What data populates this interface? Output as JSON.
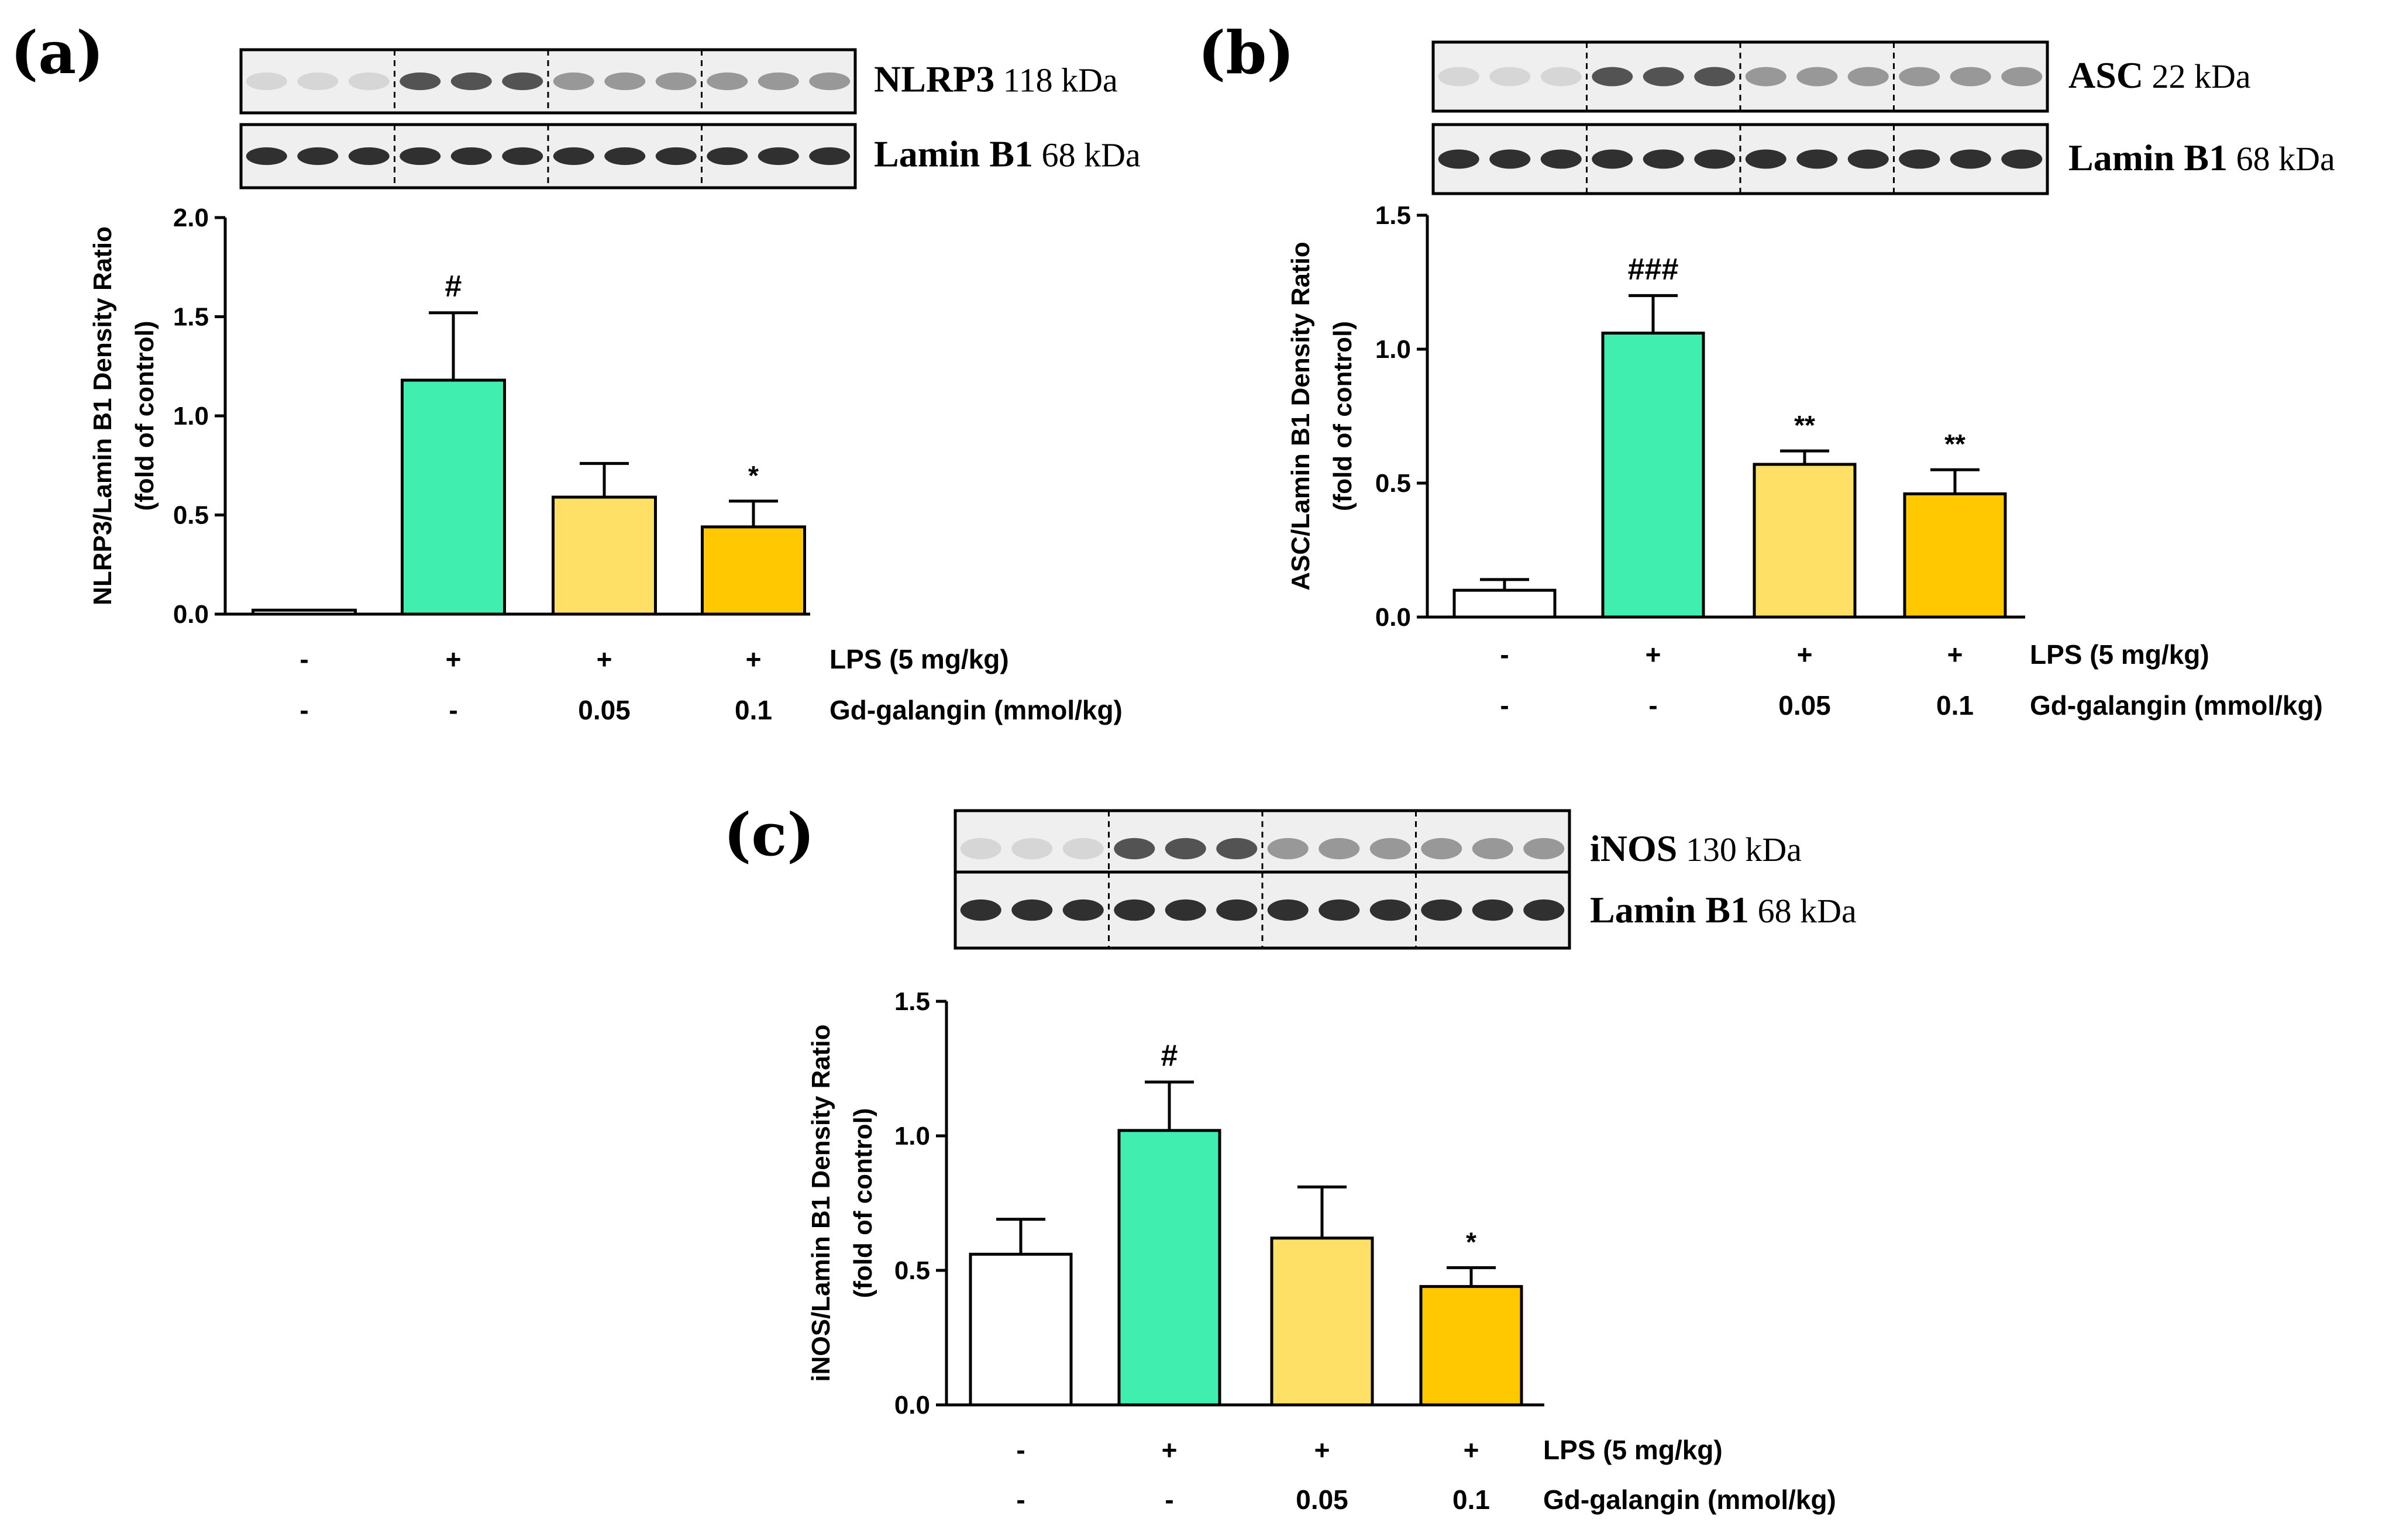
{
  "colors": {
    "control": "#ffffff",
    "lps": "#40eeb0",
    "gd_low": "#ffe066",
    "gd_high": "#ffc800",
    "outline": "#000000"
  },
  "chart_data": [
    {
      "type": "bar",
      "panel": "(a)",
      "blot_labels": [
        {
          "name": "NLRP3",
          "kda": "118 kDa"
        },
        {
          "name": "Lamin B1",
          "kda": "68 kDa"
        }
      ],
      "ylabel_line1": "NLRP3/Lamin B1 Density Ratio",
      "ylabel_line2": "(fold of control)",
      "ylim": [
        0,
        2.0
      ],
      "yticks": [
        "0.0",
        "0.5",
        "1.0",
        "1.5",
        "2.0"
      ],
      "values": [
        0.02,
        1.18,
        0.59,
        0.44
      ],
      "errors": [
        0.0,
        0.34,
        0.17,
        0.13
      ],
      "significance": [
        "",
        "#",
        "",
        "*"
      ],
      "treatment_rows": [
        {
          "label": "LPS (5 mg/kg)",
          "values": [
            "-",
            "+",
            "+",
            "+"
          ]
        },
        {
          "label": "Gd-galangin (mmol/kg)",
          "values": [
            "-",
            "-",
            "0.05",
            "0.1"
          ]
        }
      ]
    },
    {
      "type": "bar",
      "panel": "(b)",
      "blot_labels": [
        {
          "name": "ASC",
          "kda": "22 kDa"
        },
        {
          "name": "Lamin B1",
          "kda": "68 kDa"
        }
      ],
      "ylabel_line1": "ASC/Lamin B1 Density Ratio",
      "ylabel_line2": "(fold of control)",
      "ylim": [
        0,
        1.5
      ],
      "yticks": [
        "0.0",
        "0.5",
        "1.0",
        "1.5"
      ],
      "values": [
        0.1,
        1.06,
        0.57,
        0.46
      ],
      "errors": [
        0.04,
        0.14,
        0.05,
        0.09
      ],
      "significance": [
        "",
        "###",
        "**",
        "**"
      ],
      "treatment_rows": [
        {
          "label": "LPS (5 mg/kg)",
          "values": [
            "-",
            "+",
            "+",
            "+"
          ]
        },
        {
          "label": "Gd-galangin (mmol/kg)",
          "values": [
            "-",
            "-",
            "0.05",
            "0.1"
          ]
        }
      ]
    },
    {
      "type": "bar",
      "panel": "(c)",
      "blot_labels": [
        {
          "name": "iNOS",
          "kda": "130 kDa"
        },
        {
          "name": "Lamin B1",
          "kda": "68 kDa"
        }
      ],
      "ylabel_line1": "iNOS/Lamin B1 Density Ratio",
      "ylabel_line2": "(fold of control)",
      "ylim": [
        0,
        1.5
      ],
      "yticks": [
        "0.0",
        "0.5",
        "1.0",
        "1.5"
      ],
      "values": [
        0.56,
        1.02,
        0.62,
        0.44
      ],
      "errors": [
        0.13,
        0.18,
        0.19,
        0.07
      ],
      "significance": [
        "",
        "#",
        "",
        "*"
      ],
      "treatment_rows": [
        {
          "label": "LPS (5 mg/kg)",
          "values": [
            "-",
            "+",
            "+",
            "+"
          ]
        },
        {
          "label": "Gd-galangin (mmol/kg)",
          "values": [
            "-",
            "-",
            "0.05",
            "0.1"
          ]
        }
      ]
    }
  ]
}
